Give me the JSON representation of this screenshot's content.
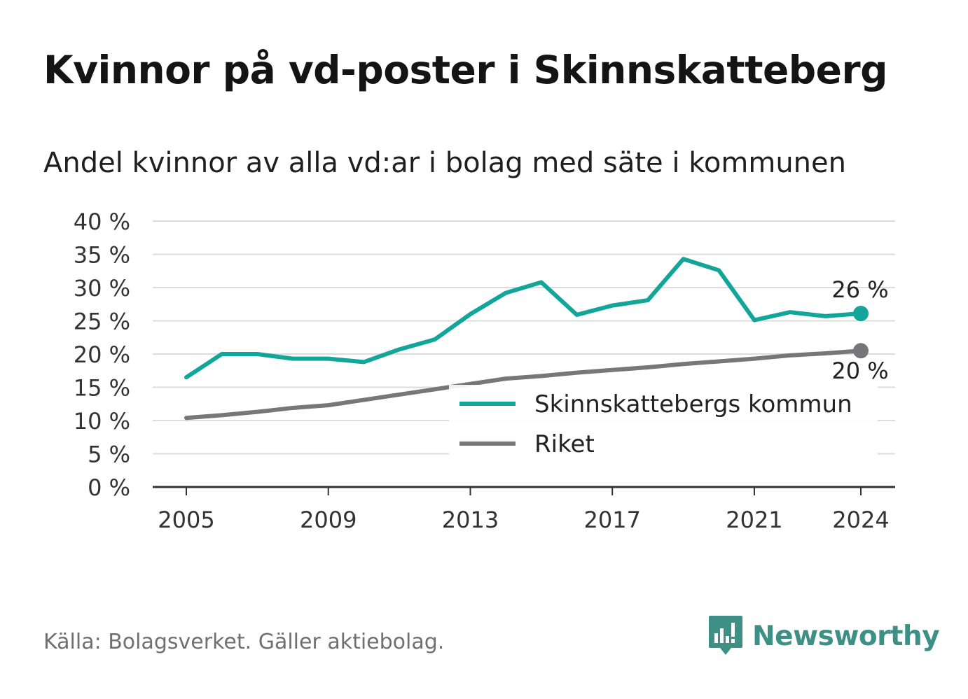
{
  "title": "Kvinnor på vd-poster i Skinnskatteberg",
  "subtitle": "Andel kvinnor av alla vd:ar i bolag med säte i kommunen",
  "source": "Källa: Bolagsverket. Gäller aktiebolag.",
  "brand": {
    "name": "Newsworthy",
    "icon": "newsworthy-logo-icon",
    "color": "#3e8f86"
  },
  "colors": {
    "local": "#12a59a",
    "national": "#77767b",
    "grid": "#dcdcdc",
    "axis": "#333333"
  },
  "chart_data": {
    "type": "line",
    "x": [
      2005,
      2006,
      2007,
      2008,
      2009,
      2010,
      2011,
      2012,
      2013,
      2014,
      2015,
      2016,
      2017,
      2018,
      2019,
      2020,
      2021,
      2022,
      2023,
      2024
    ],
    "x_ticks": [
      "2005",
      "2009",
      "2013",
      "2017",
      "2021",
      "2024"
    ],
    "y_ticks": [
      "0 %",
      "5 %",
      "10 %",
      "15 %",
      "20 %",
      "25 %",
      "30 %",
      "35 %",
      "40 %"
    ],
    "ylim": [
      0,
      40
    ],
    "grid": true,
    "legend_position": "bottom-right",
    "series": [
      {
        "name": "Skinnskattebergs kommun",
        "color": "#12a59a",
        "values": [
          16.5,
          20.0,
          20.0,
          19.3,
          19.3,
          18.8,
          20.7,
          22.2,
          26.0,
          29.2,
          30.8,
          25.9,
          27.3,
          28.1,
          34.3,
          32.6,
          25.1,
          26.3,
          25.7,
          26.1
        ],
        "end_label": "26 %"
      },
      {
        "name": "Riket",
        "color": "#77767b",
        "values": [
          10.4,
          10.8,
          11.3,
          11.9,
          12.3,
          13.1,
          13.9,
          14.7,
          15.5,
          16.3,
          16.7,
          17.2,
          17.6,
          18.0,
          18.5,
          18.9,
          19.3,
          19.8,
          20.1,
          20.5
        ],
        "end_label": "20 %"
      }
    ]
  }
}
